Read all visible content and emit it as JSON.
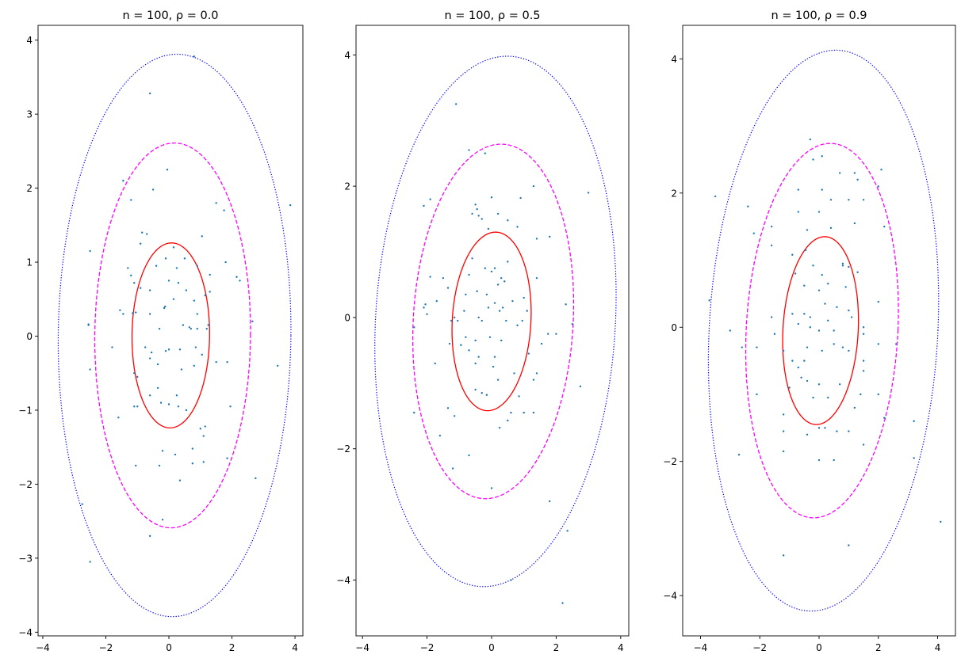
{
  "chart_data": [
    {
      "type": "scatter",
      "title": "n = 100, ρ = 0.0",
      "xlabel": "",
      "ylabel": "",
      "xlim": [
        -4.15,
        4.25
      ],
      "ylim": [
        -4.05,
        4.2
      ],
      "xticks": [
        -4,
        -2,
        0,
        2,
        4
      ],
      "yticks": [
        -4,
        -3,
        -2,
        -1,
        0,
        1,
        2,
        3,
        4
      ],
      "grid": false,
      "ellipses": [
        {
          "cx": 0.06,
          "cy": 0.01,
          "a": 1.25,
          "b": 1.23,
          "tilt": 0.02,
          "color": "#ff0000",
          "style": "solid"
        },
        {
          "cx": 0.12,
          "cy": 0.01,
          "a": 2.6,
          "b": 2.47,
          "tilt": 0.02,
          "color": "#ff00ff",
          "style": "dashed"
        },
        {
          "cx": 0.18,
          "cy": 0.01,
          "a": 3.8,
          "b": 3.69,
          "tilt": 0.02,
          "color": "#0000ff",
          "style": "dotted"
        }
      ],
      "points": [
        [
          0.8,
          3.78
        ],
        [
          -0.6,
          3.28
        ],
        [
          -0.05,
          2.25
        ],
        [
          -0.5,
          1.98
        ],
        [
          -1.45,
          2.1
        ],
        [
          -1.2,
          1.84
        ],
        [
          3.85,
          1.77
        ],
        [
          1.5,
          1.8
        ],
        [
          1.75,
          1.7
        ],
        [
          -2.5,
          1.15
        ],
        [
          -0.85,
          1.4
        ],
        [
          -0.7,
          1.38
        ],
        [
          -0.9,
          1.25
        ],
        [
          0.15,
          1.2
        ],
        [
          1.05,
          1.35
        ],
        [
          -1.3,
          0.92
        ],
        [
          -1.2,
          0.82
        ],
        [
          -1.1,
          0.72
        ],
        [
          -0.4,
          0.95
        ],
        [
          -0.1,
          1.05
        ],
        [
          0.5,
          1.05
        ],
        [
          0.25,
          0.92
        ],
        [
          0.9,
          0.95
        ],
        [
          1.3,
          0.83
        ],
        [
          1.8,
          1.0
        ],
        [
          2.15,
          0.8
        ],
        [
          2.25,
          0.75
        ],
        [
          -1.55,
          0.35
        ],
        [
          -1.45,
          0.3
        ],
        [
          -0.9,
          0.65
        ],
        [
          -0.6,
          0.62
        ],
        [
          0.0,
          0.75
        ],
        [
          0.3,
          0.72
        ],
        [
          0.55,
          0.62
        ],
        [
          0.15,
          0.5
        ],
        [
          0.8,
          0.48
        ],
        [
          1.15,
          0.55
        ],
        [
          1.3,
          0.6
        ],
        [
          -1.05,
          0.32
        ],
        [
          -0.6,
          0.3
        ],
        [
          -0.15,
          0.38
        ],
        [
          -0.12,
          0.4
        ],
        [
          0.9,
          0.3
        ],
        [
          2.65,
          0.2
        ],
        [
          -2.55,
          0.15
        ],
        [
          -0.3,
          0.1
        ],
        [
          0.45,
          0.15
        ],
        [
          0.65,
          0.12
        ],
        [
          0.9,
          0.1
        ],
        [
          1.2,
          0.1
        ],
        [
          1.25,
          0.15
        ],
        [
          0.7,
          0.1
        ],
        [
          -1.8,
          -0.15
        ],
        [
          -0.75,
          -0.15
        ],
        [
          -0.55,
          -0.22
        ],
        [
          -0.6,
          -0.3
        ],
        [
          -0.1,
          -0.2
        ],
        [
          0.0,
          -0.18
        ],
        [
          0.35,
          -0.18
        ],
        [
          0.85,
          -0.15
        ],
        [
          1.05,
          -0.25
        ],
        [
          1.5,
          -0.35
        ],
        [
          1.85,
          -0.35
        ],
        [
          -1.1,
          -0.5
        ],
        [
          -1.0,
          -0.55
        ],
        [
          -0.35,
          -0.38
        ],
        [
          0.4,
          -0.45
        ],
        [
          0.8,
          -0.4
        ],
        [
          3.45,
          -0.4
        ],
        [
          -2.5,
          -0.45
        ],
        [
          -1.1,
          -0.95
        ],
        [
          -1.0,
          -0.95
        ],
        [
          -0.6,
          -0.8
        ],
        [
          -0.35,
          -0.7
        ],
        [
          -0.25,
          -0.9
        ],
        [
          0.0,
          -0.92
        ],
        [
          0.25,
          -0.8
        ],
        [
          0.3,
          -0.95
        ],
        [
          0.55,
          -1.0
        ],
        [
          1.0,
          -1.25
        ],
        [
          1.1,
          -1.35
        ],
        [
          1.15,
          -1.22
        ],
        [
          1.95,
          -0.95
        ],
        [
          -1.6,
          -1.1
        ],
        [
          -0.2,
          -1.55
        ],
        [
          0.2,
          -1.6
        ],
        [
          0.75,
          -1.52
        ],
        [
          0.75,
          -1.72
        ],
        [
          1.1,
          -1.7
        ],
        [
          1.85,
          -1.65
        ],
        [
          -1.05,
          -1.75
        ],
        [
          -0.3,
          -1.75
        ],
        [
          0.35,
          -1.95
        ],
        [
          2.75,
          -1.92
        ],
        [
          -2.75,
          -2.27
        ],
        [
          -2.5,
          -3.05
        ],
        [
          -0.6,
          -2.7
        ],
        [
          -0.2,
          -2.48
        ],
        [
          -2.55,
          0.16
        ],
        [
          -1.15,
          0.31
        ]
      ]
    },
    {
      "type": "scatter",
      "title": "n = 100, ρ = 0.5",
      "xlabel": "",
      "ylabel": "",
      "xlim": [
        -4.2,
        4.25
      ],
      "ylim": [
        -4.85,
        4.45
      ],
      "xticks": [
        -4,
        -2,
        0,
        2,
        4
      ],
      "yticks": [
        -4,
        -2,
        0,
        2,
        4
      ],
      "grid": false,
      "ellipses": [
        {
          "cx": 0.0,
          "cy": -0.06,
          "a": 1.36,
          "b": 1.22,
          "tilt": 0.09,
          "color": "#ff0000",
          "style": "solid"
        },
        {
          "cx": 0.05,
          "cy": -0.06,
          "a": 2.7,
          "b": 2.48,
          "tilt": 0.09,
          "color": "#ff00ff",
          "style": "dashed"
        },
        {
          "cx": 0.12,
          "cy": -0.06,
          "a": 4.04,
          "b": 3.72,
          "tilt": 0.09,
          "color": "#0000ff",
          "style": "dotted"
        }
      ],
      "points": [
        [
          -1.1,
          3.25
        ],
        [
          -0.7,
          2.55
        ],
        [
          -0.2,
          2.5
        ],
        [
          1.3,
          2.0
        ],
        [
          3.0,
          1.9
        ],
        [
          -2.1,
          1.7
        ],
        [
          -1.9,
          1.8
        ],
        [
          -0.5,
          1.72
        ],
        [
          -0.45,
          1.65
        ],
        [
          0.0,
          1.83
        ],
        [
          0.9,
          1.82
        ],
        [
          -0.4,
          1.55
        ],
        [
          -0.6,
          1.58
        ],
        [
          0.2,
          1.58
        ],
        [
          -0.3,
          1.5
        ],
        [
          -0.1,
          1.35
        ],
        [
          0.5,
          1.48
        ],
        [
          1.8,
          1.23
        ],
        [
          0.8,
          1.38
        ],
        [
          1.4,
          1.2
        ],
        [
          -0.6,
          0.9
        ],
        [
          -0.7,
          0.65
        ],
        [
          -1.5,
          0.6
        ],
        [
          -1.9,
          0.62
        ],
        [
          -0.2,
          0.75
        ],
        [
          0.0,
          0.7
        ],
        [
          0.1,
          0.75
        ],
        [
          0.3,
          0.6
        ],
        [
          1.4,
          0.6
        ],
        [
          0.2,
          0.5
        ],
        [
          0.4,
          0.55
        ],
        [
          -0.45,
          0.4
        ],
        [
          -1.35,
          0.45
        ],
        [
          -2.1,
          0.15
        ],
        [
          -2.05,
          0.2
        ],
        [
          -1.7,
          0.25
        ],
        [
          -0.8,
          0.35
        ],
        [
          0.1,
          0.22
        ],
        [
          0.35,
          0.15
        ],
        [
          -0.1,
          0.15
        ],
        [
          -0.85,
          0.1
        ],
        [
          -1.15,
          0.0
        ],
        [
          -0.4,
          0.0
        ],
        [
          -0.3,
          -0.05
        ],
        [
          0.25,
          0.1
        ],
        [
          0.45,
          -0.05
        ],
        [
          0.95,
          -0.05
        ],
        [
          1.1,
          0.1
        ],
        [
          2.3,
          0.2
        ],
        [
          2.5,
          -0.1
        ],
        [
          -2.4,
          -0.15
        ],
        [
          -1.05,
          -0.05
        ],
        [
          -0.8,
          -0.3
        ],
        [
          -0.5,
          -0.35
        ],
        [
          -0.05,
          -0.3
        ],
        [
          0.3,
          -0.35
        ],
        [
          1.75,
          -0.25
        ],
        [
          -1.3,
          -0.4
        ],
        [
          -0.7,
          -0.5
        ],
        [
          -0.4,
          -0.6
        ],
        [
          -0.5,
          -0.7
        ],
        [
          0.1,
          -0.6
        ],
        [
          1.15,
          -0.55
        ],
        [
          2.0,
          -0.25
        ],
        [
          -1.75,
          -0.7
        ],
        [
          0.7,
          -0.85
        ],
        [
          1.3,
          -0.95
        ],
        [
          1.4,
          -0.85
        ],
        [
          -0.5,
          -1.1
        ],
        [
          -0.3,
          -1.15
        ],
        [
          -0.15,
          -1.18
        ],
        [
          0.2,
          -0.95
        ],
        [
          2.75,
          -1.05
        ],
        [
          -2.4,
          -1.45
        ],
        [
          -1.35,
          -1.38
        ],
        [
          -1.15,
          -1.5
        ],
        [
          0.25,
          -1.68
        ],
        [
          0.5,
          -1.57
        ],
        [
          0.6,
          -1.45
        ],
        [
          1.0,
          -1.45
        ],
        [
          1.3,
          -1.45
        ],
        [
          0.85,
          -1.2
        ],
        [
          -1.6,
          -1.8
        ],
        [
          -1.2,
          -2.3
        ],
        [
          -0.7,
          -2.1
        ],
        [
          0.0,
          -2.6
        ],
        [
          1.8,
          -2.8
        ],
        [
          2.35,
          -3.25
        ],
        [
          0.6,
          -4.0
        ],
        [
          2.2,
          -4.35
        ],
        [
          -1.25,
          -0.05
        ],
        [
          -0.95,
          -0.42
        ],
        [
          0.65,
          0.25
        ],
        [
          0.8,
          -0.12
        ],
        [
          -0.15,
          0.35
        ],
        [
          0.05,
          -0.75
        ],
        [
          0.5,
          0.85
        ],
        [
          1.55,
          -0.4
        ],
        [
          -2.0,
          0.05
        ],
        [
          1.0,
          0.3
        ]
      ]
    },
    {
      "type": "scatter",
      "title": "n = 100, ρ = 0.9",
      "xlabel": "",
      "ylabel": "",
      "xlim": [
        -4.6,
        4.6
      ],
      "ylim": [
        -4.6,
        4.5
      ],
      "xticks": [
        -4,
        -2,
        0,
        2,
        4
      ],
      "yticks": [
        -4,
        -2,
        0,
        2,
        4
      ],
      "grid": false,
      "ellipses": [
        {
          "cx": 0.05,
          "cy": -0.05,
          "a": 1.4,
          "b": 1.27,
          "tilt": 0.1,
          "color": "#ff0000",
          "style": "solid"
        },
        {
          "cx": 0.1,
          "cy": -0.05,
          "a": 2.79,
          "b": 2.56,
          "tilt": 0.1,
          "color": "#ff00ff",
          "style": "dashed"
        },
        {
          "cx": 0.15,
          "cy": -0.05,
          "a": 4.18,
          "b": 3.86,
          "tilt": 0.1,
          "color": "#0000ff",
          "style": "dotted"
        }
      ],
      "points": [
        [
          -0.3,
          2.8
        ],
        [
          0.1,
          2.55
        ],
        [
          -0.2,
          2.5
        ],
        [
          0.7,
          2.3
        ],
        [
          1.2,
          2.3
        ],
        [
          1.3,
          2.2
        ],
        [
          2.1,
          2.35
        ],
        [
          -3.5,
          1.95
        ],
        [
          -2.4,
          1.8
        ],
        [
          -0.7,
          2.05
        ],
        [
          0.1,
          2.05
        ],
        [
          -0.7,
          1.72
        ],
        [
          0.0,
          1.72
        ],
        [
          0.4,
          1.9
        ],
        [
          1.0,
          1.9
        ],
        [
          1.5,
          1.9
        ],
        [
          2.2,
          1.5
        ],
        [
          2.0,
          2.1
        ],
        [
          -1.6,
          1.5
        ],
        [
          -2.2,
          1.4
        ],
        [
          -0.4,
          1.45
        ],
        [
          0.4,
          1.48
        ],
        [
          1.2,
          1.55
        ],
        [
          -1.6,
          1.22
        ],
        [
          -0.9,
          1.08
        ],
        [
          -0.45,
          1.15
        ],
        [
          0.8,
          0.95
        ],
        [
          0.8,
          0.92
        ],
        [
          1.0,
          0.9
        ],
        [
          1.3,
          0.82
        ],
        [
          -0.8,
          0.8
        ],
        [
          -0.2,
          0.92
        ],
        [
          0.1,
          0.78
        ],
        [
          0.3,
          0.65
        ],
        [
          -0.5,
          0.62
        ],
        [
          0.0,
          0.55
        ],
        [
          2.0,
          0.38
        ],
        [
          -3.7,
          0.4
        ],
        [
          -0.9,
          0.2
        ],
        [
          -0.5,
          0.2
        ],
        [
          -0.3,
          0.15
        ],
        [
          0.2,
          0.35
        ],
        [
          0.6,
          0.3
        ],
        [
          1.0,
          0.25
        ],
        [
          1.1,
          0.15
        ],
        [
          -1.6,
          0.15
        ],
        [
          -0.7,
          0.05
        ],
        [
          -0.3,
          0.0
        ],
        [
          0.0,
          -0.05
        ],
        [
          0.3,
          0.1
        ],
        [
          0.5,
          -0.05
        ],
        [
          1.5,
          0.0
        ],
        [
          1.5,
          -0.1
        ],
        [
          -1.5,
          -0.1
        ],
        [
          -2.6,
          -0.3
        ],
        [
          -0.4,
          -0.3
        ],
        [
          0.1,
          -0.35
        ],
        [
          0.5,
          -0.25
        ],
        [
          0.8,
          -0.3
        ],
        [
          1.0,
          -0.35
        ],
        [
          2.0,
          -0.25
        ],
        [
          2.6,
          -0.25
        ],
        [
          -0.5,
          -0.5
        ],
        [
          -0.9,
          -0.5
        ],
        [
          -0.7,
          -0.6
        ],
        [
          -2.1,
          -0.3
        ],
        [
          1.5,
          -0.5
        ],
        [
          -1.2,
          -0.35
        ],
        [
          -0.6,
          -0.75
        ],
        [
          -0.4,
          -0.8
        ],
        [
          0.0,
          -0.85
        ],
        [
          0.7,
          -0.85
        ],
        [
          1.5,
          -0.65
        ],
        [
          2.0,
          -1.0
        ],
        [
          1.4,
          -1.0
        ],
        [
          -2.1,
          -1.0
        ],
        [
          -1.0,
          -0.9
        ],
        [
          -0.2,
          -1.05
        ],
        [
          0.3,
          -1.05
        ],
        [
          1.2,
          -1.2
        ],
        [
          2.2,
          -1.35
        ],
        [
          -1.2,
          -1.3
        ],
        [
          -1.2,
          -1.55
        ],
        [
          -0.4,
          -1.6
        ],
        [
          0.0,
          -1.5
        ],
        [
          0.2,
          -1.5
        ],
        [
          0.6,
          -1.55
        ],
        [
          1.0,
          -1.55
        ],
        [
          1.5,
          -1.75
        ],
        [
          3.2,
          -1.4
        ],
        [
          -2.7,
          -1.9
        ],
        [
          -1.2,
          -1.85
        ],
        [
          0.0,
          -1.98
        ],
        [
          0.5,
          -1.98
        ],
        [
          3.2,
          -1.95
        ],
        [
          4.1,
          -2.9
        ],
        [
          1.0,
          -3.25
        ],
        [
          -1.2,
          -3.4
        ],
        [
          -3.0,
          -0.05
        ],
        [
          0.9,
          0.6
        ]
      ]
    }
  ]
}
